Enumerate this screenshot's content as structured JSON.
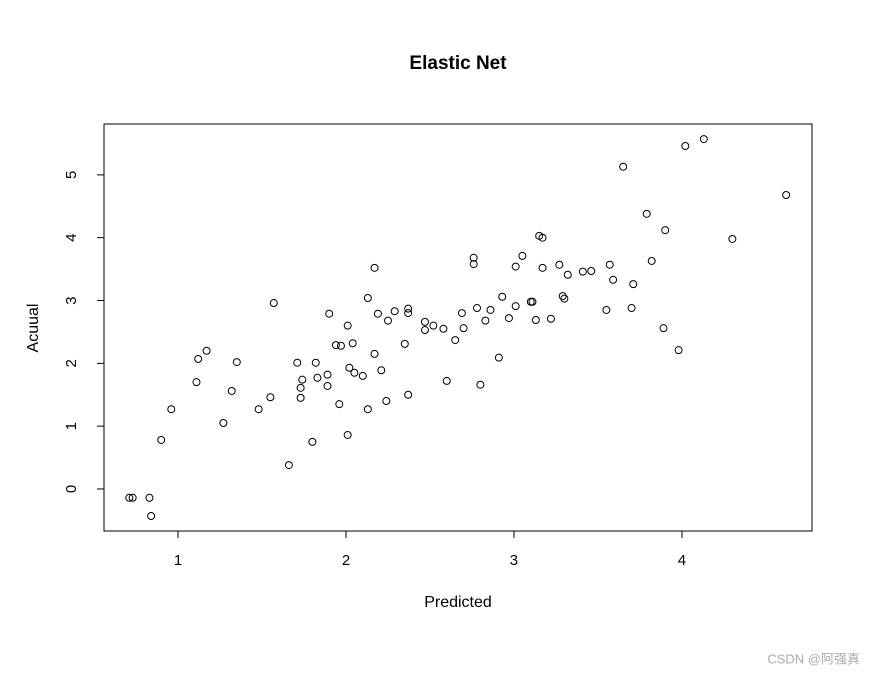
{
  "chart_data": {
    "type": "scatter",
    "title": "Elastic Net",
    "x_label": "Predicted",
    "y_label": "Acuual",
    "xlim": [
      0.5595,
      4.774
    ],
    "ylim": [
      -0.669,
      5.81
    ],
    "xticks": [
      1,
      2,
      3,
      4
    ],
    "yticks": [
      0,
      1,
      2,
      3,
      4,
      5
    ],
    "color": "#000000",
    "x": [
      0.71,
      0.73,
      0.83,
      0.84,
      0.9,
      0.96,
      1.11,
      1.12,
      1.17,
      1.27,
      1.32,
      1.35,
      1.48,
      1.55,
      1.57,
      1.66,
      1.71,
      1.73,
      1.73,
      1.74,
      1.8,
      1.82,
      1.83,
      1.89,
      1.89,
      1.9,
      1.94,
      1.96,
      1.97,
      2.01,
      2.01,
      2.02,
      2.04,
      2.05,
      2.1,
      2.13,
      2.13,
      2.17,
      2.17,
      2.19,
      2.21,
      2.24,
      2.25,
      2.29,
      2.35,
      2.37,
      2.37,
      2.37,
      2.47,
      2.47,
      2.52,
      2.58,
      2.6,
      2.65,
      2.69,
      2.7,
      2.76,
      2.76,
      2.78,
      2.8,
      2.83,
      2.86,
      2.91,
      2.93,
      2.97,
      3.01,
      3.01,
      3.05,
      3.1,
      3.11,
      3.13,
      3.15,
      3.17,
      3.17,
      3.22,
      3.27,
      3.29,
      3.3,
      3.32,
      3.41,
      3.46,
      3.55,
      3.57,
      3.59,
      3.65,
      3.7,
      3.71,
      3.79,
      3.82,
      3.89,
      3.9,
      3.98,
      4.02,
      4.13,
      4.3,
      4.62
    ],
    "values": [
      -0.14,
      -0.14,
      -0.14,
      -0.43,
      0.78,
      1.27,
      1.7,
      2.07,
      2.2,
      1.05,
      1.56,
      2.02,
      1.27,
      1.46,
      2.96,
      0.38,
      2.01,
      1.61,
      1.45,
      1.74,
      0.75,
      2.01,
      1.77,
      1.82,
      1.64,
      2.79,
      2.29,
      1.35,
      2.28,
      0.86,
      2.6,
      1.93,
      2.32,
      1.85,
      1.8,
      1.27,
      3.04,
      2.15,
      3.52,
      2.79,
      1.89,
      1.4,
      2.68,
      2.83,
      2.31,
      2.87,
      2.8,
      1.5,
      2.66,
      2.53,
      2.6,
      2.55,
      1.72,
      2.37,
      2.8,
      2.56,
      3.58,
      3.68,
      2.88,
      1.66,
      2.68,
      2.85,
      2.09,
      3.06,
      2.72,
      2.91,
      3.54,
      3.71,
      2.98,
      2.98,
      2.69,
      4.03,
      4.0,
      3.52,
      2.71,
      3.57,
      3.07,
      3.03,
      3.41,
      3.46,
      3.47,
      2.85,
      3.57,
      3.33,
      5.13,
      2.88,
      3.26,
      4.38,
      3.63,
      2.56,
      4.12,
      2.21,
      5.46,
      5.57,
      3.98,
      4.68
    ]
  },
  "watermark": "CSDN @阿强真"
}
